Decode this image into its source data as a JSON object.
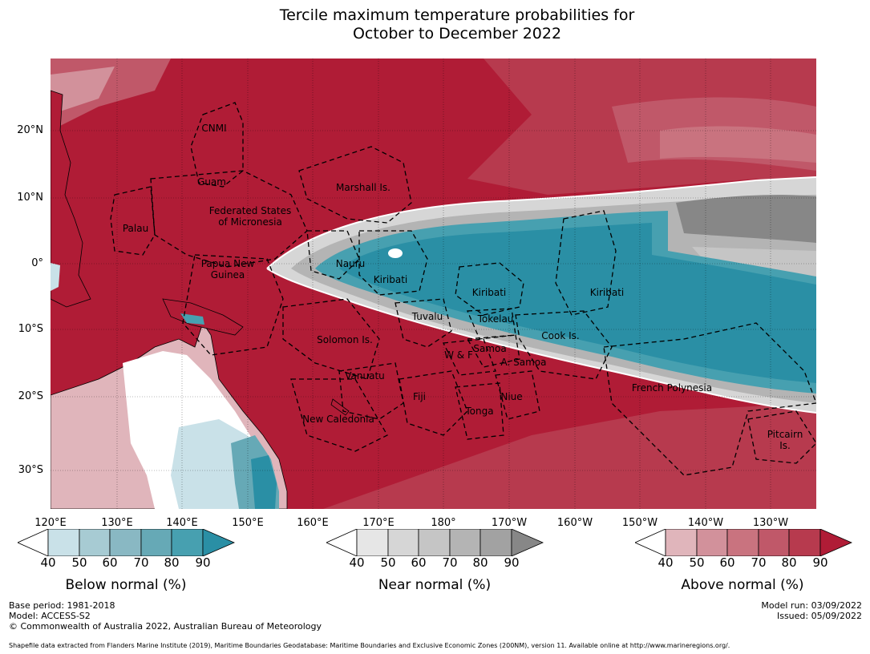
{
  "title": {
    "line1": "Tercile maximum temperature probabilities for",
    "line2": "October to December 2022"
  },
  "lat_labels": [
    "20°N",
    "10°N",
    "0°",
    "10°S",
    "20°S",
    "30°S"
  ],
  "lon_labels": [
    "120°E",
    "130°E",
    "140°E",
    "150°E",
    "160°E",
    "170°E",
    "180°",
    "170°W",
    "160°W",
    "150°W",
    "140°W",
    "130°W"
  ],
  "regions": {
    "cnmi": "CNMI",
    "guam": "Guam",
    "marshall": "Marshall Is.",
    "fsm": "Federated States\nof Micronesia",
    "palau": "Palau",
    "nauru": "Nauru",
    "kiribati_w": "Kiribati",
    "kiribati_c": "Kiribati",
    "kiribati_e": "Kiribati",
    "png": "Papua New\nGuinea",
    "tuvalu": "Tuvalu",
    "tokelau": "Tokelau",
    "cook": "Cook Is.",
    "solomon": "Solomon Is.",
    "samoa": "Samoa",
    "wf": "W & F",
    "asamoa": "A. Samoa",
    "vanuatu": "Vanuatu",
    "fiji": "Fiji",
    "niue": "Niue",
    "tonga": "Tonga",
    "frenchpoly": "French Polynesia",
    "newcal": "New Caledonia",
    "pitcairn": "Pitcairn\nIs."
  },
  "colorbars": [
    {
      "title": "Below normal (%)",
      "ticks": [
        "40",
        "50",
        "60",
        "70",
        "80",
        "90"
      ],
      "colors": [
        "#c9e1e8",
        "#a7cbd3",
        "#89b8c3",
        "#66a9b6",
        "#47a0b0",
        "#2a8fa5"
      ]
    },
    {
      "title": "Near normal (%)",
      "ticks": [
        "40",
        "50",
        "60",
        "70",
        "80",
        "90"
      ],
      "colors": [
        "#e6e6e6",
        "#d6d6d6",
        "#c5c5c5",
        "#b4b4b4",
        "#a2a2a2",
        "#878787"
      ]
    },
    {
      "title": "Above normal (%)",
      "ticks": [
        "40",
        "50",
        "60",
        "70",
        "80",
        "90"
      ],
      "colors": [
        "#e0b5bb",
        "#d2919b",
        "#c9737f",
        "#c05869",
        "#b73a4e",
        "#b01c36"
      ]
    }
  ],
  "footer": {
    "base_period": "Base period: 1981-2018",
    "model": "Model: ACCESS-S2",
    "copyright": "© Commonwealth of Australia 2022, Australian Bureau of Meteorology",
    "model_run": "Model run: 03/09/2022",
    "issued": "Issued: 05/09/2022",
    "shapefile": "Shapefile data extracted from Flanders Marine Institute (2019), Maritime Boundaries Geodatabase: Maritime Boundaries and Exclusive Economic Zones (200NM), version 11. Available online at http://www.marineregions.org/."
  }
}
